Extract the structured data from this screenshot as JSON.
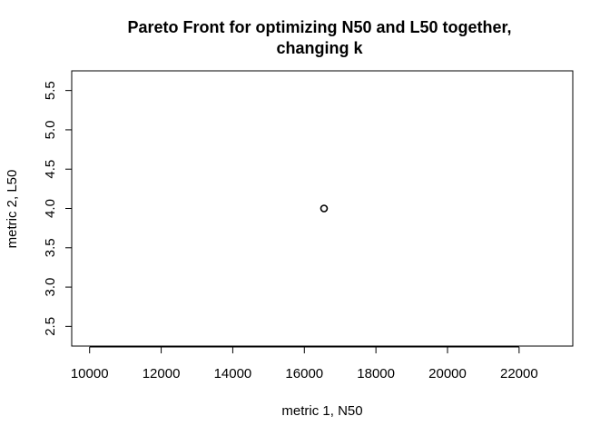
{
  "chart_data": {
    "type": "scatter",
    "title_lines": [
      "Pareto Front for optimizing N50 and L50 together,",
      "changing k"
    ],
    "xlabel": "metric 1, N50",
    "ylabel": "metric 2, L50",
    "xlim": [
      9500,
      23500
    ],
    "ylim": [
      2.25,
      5.75
    ],
    "x_ticks": [
      10000,
      12000,
      14000,
      16000,
      18000,
      20000,
      22000
    ],
    "y_ticks": [
      2.5,
      3.0,
      3.5,
      4.0,
      4.5,
      5.0,
      5.5
    ],
    "y_tick_labels": [
      "2.5",
      "3.0",
      "3.5",
      "4.0",
      "4.5",
      "5.0",
      "5.5"
    ],
    "points": [
      {
        "x": 16550,
        "y": 4.0
      }
    ],
    "marker": "open-circle",
    "grid": false
  }
}
